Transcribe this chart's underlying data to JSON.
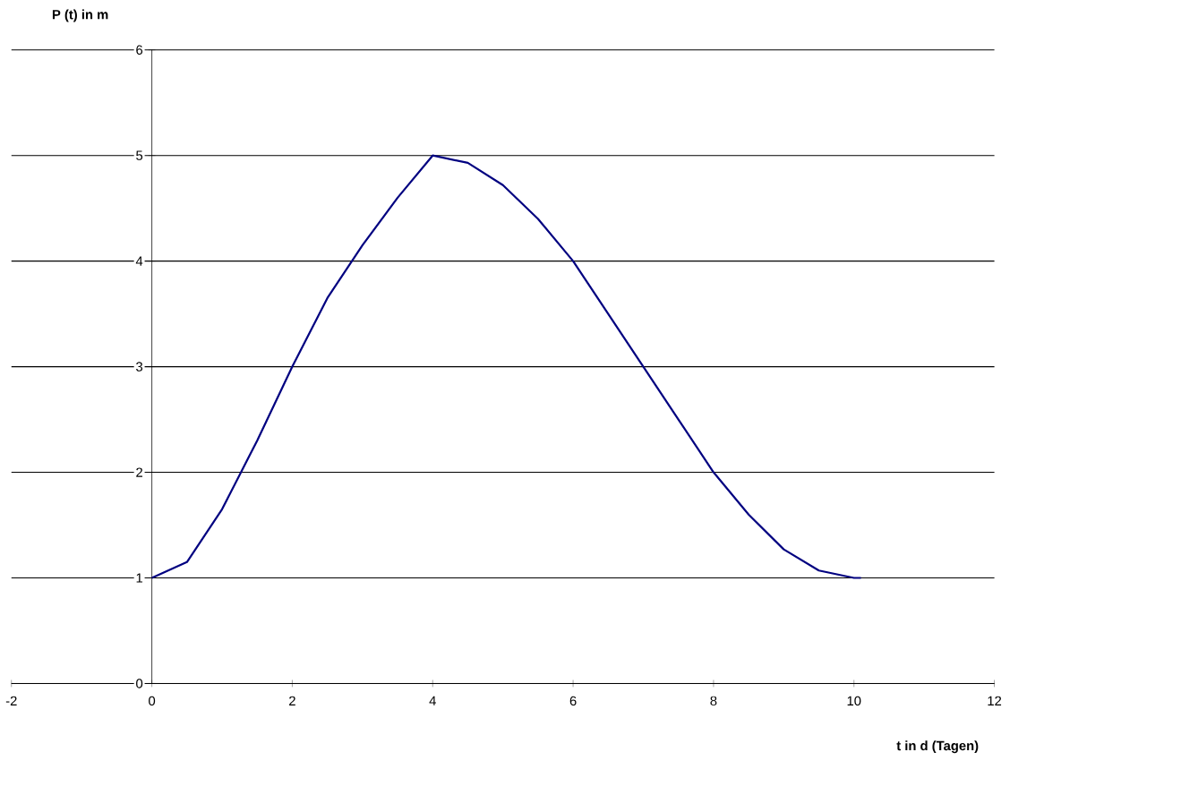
{
  "chart_data": {
    "type": "line",
    "xlabel": "t in d (Tagen)",
    "ylabel": "P (t) in m",
    "xlim": [
      -2,
      12
    ],
    "xticks": [
      -2,
      0,
      2,
      4,
      6,
      8,
      10,
      12
    ],
    "ylim": [
      0,
      6
    ],
    "yticks": [
      0,
      1,
      2,
      3,
      4,
      5,
      6
    ],
    "grid": "y",
    "marker": "none",
    "line_style": "solid",
    "series": [
      {
        "color": "#000080",
        "x": [
          0,
          0.5,
          1,
          1.5,
          2,
          2.5,
          3,
          3.5,
          4,
          4.5,
          5,
          5.5,
          6,
          6.5,
          7,
          7.5,
          8,
          8.5,
          9,
          9.5,
          10,
          10.1
        ],
        "values": [
          1,
          1.15,
          1.65,
          2.3,
          3.0,
          3.65,
          4.15,
          4.6,
          5.0,
          4.93,
          4.72,
          4.4,
          4.0,
          3.5,
          3.0,
          2.5,
          2.0,
          1.6,
          1.27,
          1.07,
          1.0,
          1.0
        ]
      }
    ]
  }
}
